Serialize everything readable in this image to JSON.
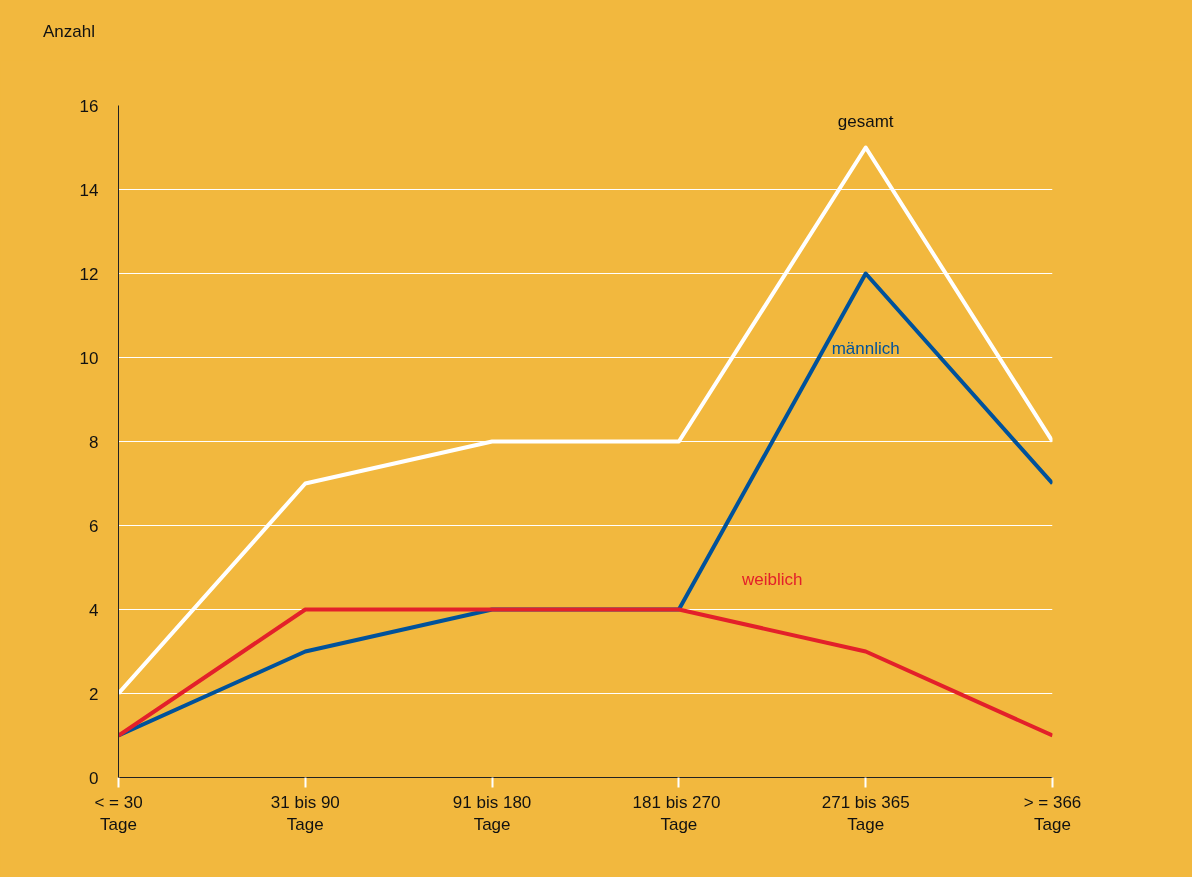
{
  "chart_data": {
    "type": "line",
    "categories": [
      "< = 30\nTage",
      "31 bis 90\nTage",
      "91 bis 180\nTage",
      "181 bis  270\nTage",
      "271 bis 365\nTage",
      "> = 366\nTage"
    ],
    "ylabel": "Anzahl",
    "ylim": [
      0,
      16
    ],
    "yticks": [
      0,
      2,
      4,
      6,
      8,
      10,
      12,
      14,
      16
    ],
    "grid": "y",
    "legend": false,
    "marker": "none",
    "line_style": "solid",
    "series": [
      {
        "name": "gesamt",
        "color": "#ffffff",
        "values": [
          2,
          7,
          8,
          8,
          15,
          8
        ]
      },
      {
        "name": "männlich",
        "color": "#00529b",
        "values": [
          1,
          3,
          4,
          4,
          12,
          7
        ]
      },
      {
        "name": "weiblich",
        "color": "#e3202a",
        "values": [
          1,
          4,
          4,
          4,
          3,
          1
        ]
      }
    ]
  }
}
